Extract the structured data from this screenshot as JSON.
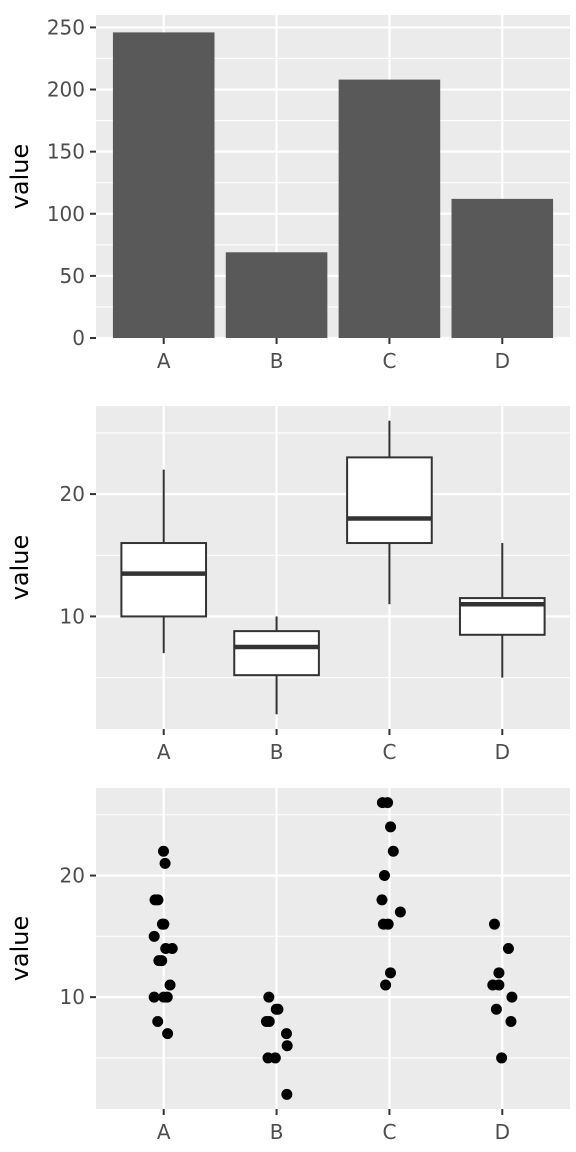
{
  "colors": {
    "panel_bg": "#ebebeb",
    "grid": "#ffffff",
    "bar_fill": "#595959",
    "box_fill": "#ffffff",
    "box_line": "#333333",
    "point": "#000000",
    "tick": "#333333",
    "tick_text": "#4d4d4d"
  },
  "chart_data": [
    {
      "type": "bar",
      "categories": [
        "A",
        "B",
        "C",
        "D"
      ],
      "values": [
        246,
        69,
        208,
        112
      ],
      "xlabel": "",
      "ylabel": "value",
      "ylim": [
        0,
        260
      ],
      "yticks": [
        0,
        50,
        100,
        150,
        200,
        250
      ],
      "grid": true
    },
    {
      "type": "box",
      "categories": [
        "A",
        "B",
        "C",
        "D"
      ],
      "boxes": [
        {
          "min": 7,
          "q1": 10,
          "median": 13.5,
          "q3": 16,
          "max": 22
        },
        {
          "min": 2,
          "q1": 5.2,
          "median": 7.5,
          "q3": 8.8,
          "max": 10
        },
        {
          "min": 11,
          "q1": 16,
          "median": 18,
          "q3": 23,
          "max": 26
        },
        {
          "min": 5,
          "q1": 8.5,
          "median": 11,
          "q3": 11.5,
          "max": 16
        }
      ],
      "xlabel": "",
      "ylabel": "value",
      "ylim": [
        0.8,
        27.2
      ],
      "yticks": [
        10,
        20
      ],
      "grid": true
    },
    {
      "type": "scatter",
      "categories": [
        "A",
        "B",
        "C",
        "D"
      ],
      "points": [
        {
          "x": "A",
          "y": 22
        },
        {
          "x": "A",
          "y": 21
        },
        {
          "x": "A",
          "y": 18
        },
        {
          "x": "A",
          "y": 18
        },
        {
          "x": "A",
          "y": 16
        },
        {
          "x": "A",
          "y": 16
        },
        {
          "x": "A",
          "y": 15
        },
        {
          "x": "A",
          "y": 14
        },
        {
          "x": "A",
          "y": 14
        },
        {
          "x": "A",
          "y": 13
        },
        {
          "x": "A",
          "y": 13
        },
        {
          "x": "A",
          "y": 11
        },
        {
          "x": "A",
          "y": 10
        },
        {
          "x": "A",
          "y": 10
        },
        {
          "x": "A",
          "y": 10
        },
        {
          "x": "A",
          "y": 8
        },
        {
          "x": "A",
          "y": 7
        },
        {
          "x": "B",
          "y": 10
        },
        {
          "x": "B",
          "y": 9
        },
        {
          "x": "B",
          "y": 9
        },
        {
          "x": "B",
          "y": 8
        },
        {
          "x": "B",
          "y": 8
        },
        {
          "x": "B",
          "y": 7
        },
        {
          "x": "B",
          "y": 6
        },
        {
          "x": "B",
          "y": 5
        },
        {
          "x": "B",
          "y": 5
        },
        {
          "x": "B",
          "y": 2
        },
        {
          "x": "C",
          "y": 26
        },
        {
          "x": "C",
          "y": 26
        },
        {
          "x": "C",
          "y": 24
        },
        {
          "x": "C",
          "y": 22
        },
        {
          "x": "C",
          "y": 20
        },
        {
          "x": "C",
          "y": 18
        },
        {
          "x": "C",
          "y": 17
        },
        {
          "x": "C",
          "y": 16
        },
        {
          "x": "C",
          "y": 16
        },
        {
          "x": "C",
          "y": 12
        },
        {
          "x": "C",
          "y": 11
        },
        {
          "x": "D",
          "y": 16
        },
        {
          "x": "D",
          "y": 14
        },
        {
          "x": "D",
          "y": 12
        },
        {
          "x": "D",
          "y": 11
        },
        {
          "x": "D",
          "y": 11
        },
        {
          "x": "D",
          "y": 10
        },
        {
          "x": "D",
          "y": 9
        },
        {
          "x": "D",
          "y": 8
        },
        {
          "x": "D",
          "y": 5
        }
      ],
      "xlabel": "",
      "ylabel": "value",
      "ylim": [
        0.8,
        27.2
      ],
      "yticks": [
        10,
        20
      ],
      "grid": true
    }
  ]
}
